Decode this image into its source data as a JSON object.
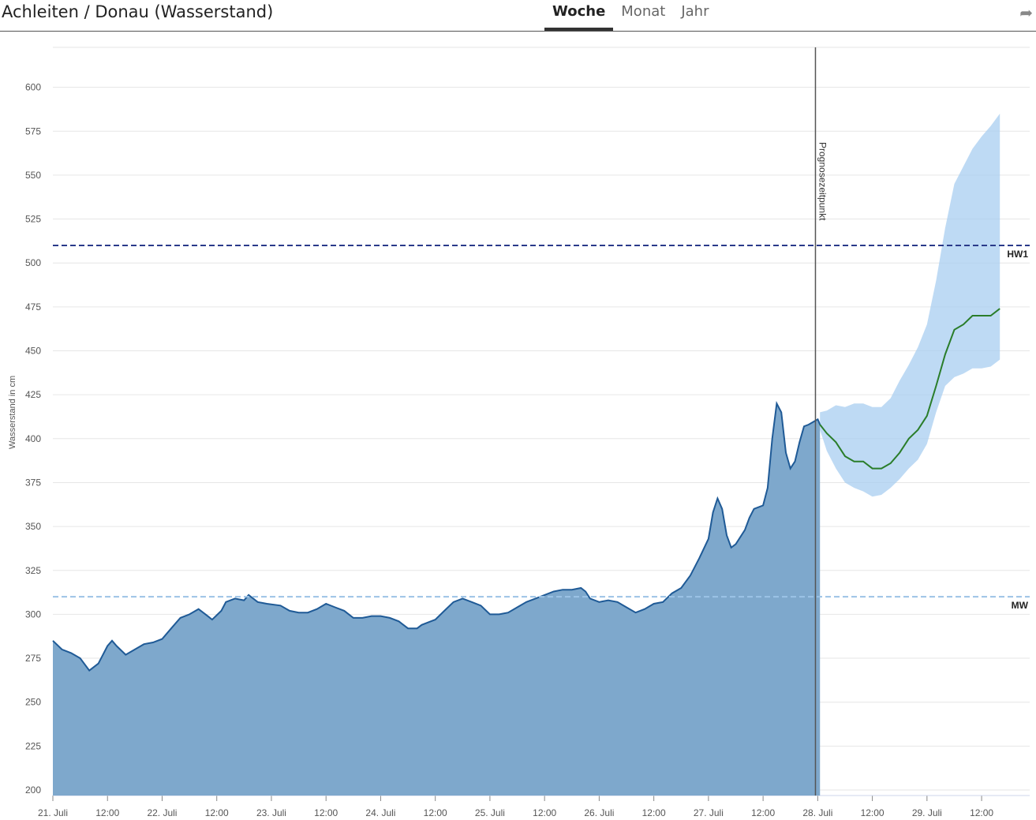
{
  "header": {
    "title": "Achleiten / Donau (Wasserstand)",
    "tabs": [
      {
        "label": "Woche",
        "active": true
      },
      {
        "label": "Monat",
        "active": false
      },
      {
        "label": "Jahr",
        "active": false
      }
    ],
    "share_icon": "share-arrow-icon"
  },
  "chart_data": {
    "type": "area",
    "title": "",
    "xlabel": "",
    "ylabel": "Wasserstand in cm",
    "ylim": [
      200,
      620
    ],
    "yticks": [
      200,
      225,
      250,
      275,
      300,
      325,
      350,
      375,
      400,
      425,
      450,
      475,
      500,
      525,
      550,
      575,
      600
    ],
    "xlim_hours": [
      0,
      189
    ],
    "xticks": [
      {
        "h": 0,
        "label": "21. Juli"
      },
      {
        "h": 12,
        "label": "12:00"
      },
      {
        "h": 24,
        "label": "22. Juli"
      },
      {
        "h": 36,
        "label": "12:00"
      },
      {
        "h": 48,
        "label": "23. Juli"
      },
      {
        "h": 60,
        "label": "12:00"
      },
      {
        "h": 72,
        "label": "24. Juli"
      },
      {
        "h": 84,
        "label": "12:00"
      },
      {
        "h": 96,
        "label": "25. Juli"
      },
      {
        "h": 108,
        "label": "12:00"
      },
      {
        "h": 120,
        "label": "26. Juli"
      },
      {
        "h": 132,
        "label": "12:00"
      },
      {
        "h": 144,
        "label": "27. Juli"
      },
      {
        "h": 156,
        "label": "12:00"
      },
      {
        "h": 168,
        "label": "28. Juli"
      },
      {
        "h": 180,
        "label": "12:00"
      },
      {
        "h": 192,
        "label": "29. Juli"
      },
      {
        "h": 204,
        "label": "12:00"
      }
    ],
    "forecast_time": {
      "h": 167.5,
      "label": "Prognosezeitpunkt"
    },
    "reference_lines": [
      {
        "label": "HW1",
        "value": 510,
        "color": "#2a3a8a"
      },
      {
        "label": "MW",
        "value": 310,
        "color": "#9cc3e6"
      }
    ],
    "series": [
      {
        "type": "area",
        "color": "#1f5a96",
        "fill": "#7ea8cc",
        "points": [
          [
            0,
            285
          ],
          [
            2,
            280
          ],
          [
            4,
            278
          ],
          [
            6,
            275
          ],
          [
            8,
            268
          ],
          [
            10,
            272
          ],
          [
            12,
            282
          ],
          [
            13,
            285
          ],
          [
            14,
            282
          ],
          [
            16,
            277
          ],
          [
            18,
            280
          ],
          [
            20,
            283
          ],
          [
            22,
            284
          ],
          [
            24,
            286
          ],
          [
            26,
            292
          ],
          [
            28,
            298
          ],
          [
            30,
            300
          ],
          [
            32,
            303
          ],
          [
            34,
            299
          ],
          [
            35,
            297
          ],
          [
            37,
            302
          ],
          [
            38,
            307
          ],
          [
            40,
            309
          ],
          [
            42,
            308
          ],
          [
            43,
            311
          ],
          [
            45,
            307
          ],
          [
            47,
            306
          ],
          [
            50,
            305
          ],
          [
            52,
            302
          ],
          [
            54,
            301
          ],
          [
            56,
            301
          ],
          [
            58,
            303
          ],
          [
            60,
            306
          ],
          [
            62,
            304
          ],
          [
            64,
            302
          ],
          [
            66,
            298
          ],
          [
            68,
            298
          ],
          [
            70,
            299
          ],
          [
            72,
            299
          ],
          [
            74,
            298
          ],
          [
            76,
            296
          ],
          [
            78,
            292
          ],
          [
            80,
            292
          ],
          [
            81,
            294
          ],
          [
            83,
            296
          ],
          [
            84,
            297
          ],
          [
            86,
            302
          ],
          [
            88,
            307
          ],
          [
            90,
            309
          ],
          [
            92,
            307
          ],
          [
            94,
            305
          ],
          [
            96,
            300
          ],
          [
            98,
            300
          ],
          [
            100,
            301
          ],
          [
            102,
            304
          ],
          [
            104,
            307
          ],
          [
            106,
            309
          ],
          [
            108,
            311
          ],
          [
            110,
            313
          ],
          [
            112,
            314
          ],
          [
            114,
            314
          ],
          [
            116,
            315
          ],
          [
            117,
            313
          ],
          [
            118,
            309
          ],
          [
            120,
            307
          ],
          [
            122,
            308
          ],
          [
            124,
            307
          ],
          [
            126,
            304
          ],
          [
            128,
            301
          ],
          [
            130,
            303
          ],
          [
            132,
            306
          ],
          [
            134,
            307
          ],
          [
            136,
            312
          ],
          [
            138,
            315
          ],
          [
            140,
            322
          ],
          [
            142,
            332
          ],
          [
            144,
            343
          ],
          [
            145,
            358
          ],
          [
            146,
            366
          ],
          [
            147,
            360
          ],
          [
            148,
            345
          ],
          [
            149,
            338
          ],
          [
            150,
            340
          ],
          [
            152,
            348
          ],
          [
            153,
            355
          ],
          [
            154,
            360
          ],
          [
            156,
            362
          ],
          [
            157,
            372
          ],
          [
            158,
            400
          ],
          [
            159,
            420
          ],
          [
            160,
            415
          ],
          [
            161,
            392
          ],
          [
            162,
            383
          ],
          [
            163,
            387
          ],
          [
            164,
            398
          ],
          [
            165,
            407
          ],
          [
            166,
            408
          ],
          [
            168,
            411
          ],
          [
            168.5,
            408
          ]
        ]
      },
      {
        "type": "line",
        "color": "#2a7d2a",
        "points": [
          [
            168.5,
            408
          ],
          [
            170,
            403
          ],
          [
            172,
            398
          ],
          [
            174,
            390
          ],
          [
            176,
            387
          ],
          [
            178,
            387
          ],
          [
            180,
            383
          ],
          [
            182,
            383
          ],
          [
            184,
            386
          ],
          [
            186,
            392
          ],
          [
            188,
            400
          ],
          [
            190,
            405
          ],
          [
            192,
            413
          ],
          [
            194,
            430
          ],
          [
            196,
            448
          ],
          [
            198,
            462
          ],
          [
            200,
            465
          ],
          [
            202,
            470
          ],
          [
            204,
            470
          ],
          [
            206,
            470
          ],
          [
            208,
            474
          ]
        ]
      },
      {
        "type": "band",
        "color": "#a8cdf0",
        "upper": [
          [
            168.5,
            415
          ],
          [
            170,
            416
          ],
          [
            172,
            419
          ],
          [
            174,
            418
          ],
          [
            176,
            420
          ],
          [
            178,
            420
          ],
          [
            180,
            418
          ],
          [
            182,
            418
          ],
          [
            184,
            423
          ],
          [
            186,
            433
          ],
          [
            188,
            442
          ],
          [
            190,
            452
          ],
          [
            192,
            465
          ],
          [
            194,
            490
          ],
          [
            196,
            520
          ],
          [
            198,
            545
          ],
          [
            200,
            555
          ],
          [
            202,
            565
          ],
          [
            204,
            572
          ],
          [
            206,
            578
          ],
          [
            208,
            585
          ]
        ],
        "lower": [
          [
            168.5,
            405
          ],
          [
            170,
            393
          ],
          [
            172,
            383
          ],
          [
            174,
            375
          ],
          [
            176,
            372
          ],
          [
            178,
            370
          ],
          [
            180,
            367
          ],
          [
            182,
            368
          ],
          [
            184,
            372
          ],
          [
            186,
            377
          ],
          [
            188,
            383
          ],
          [
            190,
            388
          ],
          [
            192,
            397
          ],
          [
            194,
            415
          ],
          [
            196,
            430
          ],
          [
            198,
            435
          ],
          [
            200,
            437
          ],
          [
            202,
            440
          ],
          [
            204,
            440
          ],
          [
            206,
            441
          ],
          [
            208,
            445
          ]
        ]
      }
    ],
    "grid": true,
    "legend": "none"
  }
}
